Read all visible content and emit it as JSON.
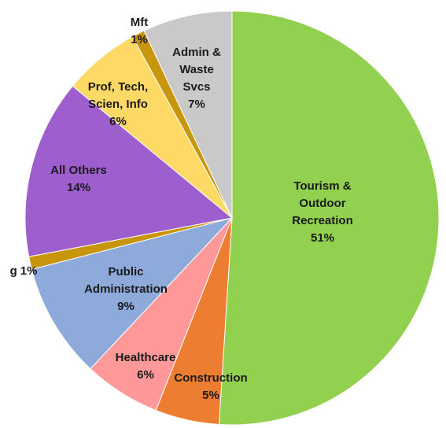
{
  "chart_data": {
    "type": "pie",
    "categories": [
      [
        "Tourism &",
        "Outdoor",
        "Recreation"
      ],
      [
        "Construction"
      ],
      [
        "Healthcare"
      ],
      [
        "Public",
        "Administration"
      ],
      [
        "g"
      ],
      [
        "All Others"
      ],
      [
        "Prof, Tech,",
        "Scien, Info"
      ],
      [
        "Mft"
      ],
      [
        "Admin &",
        "Waste",
        "Svcs"
      ]
    ],
    "values": [
      51,
      5,
      6,
      9,
      1,
      14,
      6,
      1,
      7
    ],
    "value_labels": [
      "51%",
      "5%",
      "6%",
      "9%",
      "1%",
      "14%",
      "6%",
      "1%",
      "7%"
    ],
    "colors": [
      "#92d050",
      "#ed7d31",
      "#ff9999",
      "#8eaadb",
      "#c8960c",
      "#9e5ecd",
      "#ffd966",
      "#c8960c",
      "#c9c9c9"
    ]
  }
}
